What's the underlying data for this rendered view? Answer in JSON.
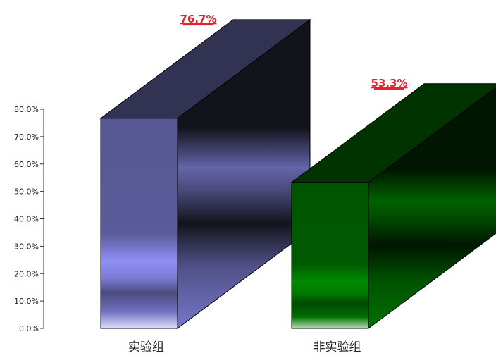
{
  "chart_data": {
    "type": "bar",
    "style": "3d",
    "categories": [
      "实验组",
      "非实验组"
    ],
    "values": [
      76.7,
      53.3
    ],
    "data_labels": [
      "76.7%",
      "53.3%"
    ],
    "ylim": [
      0,
      80
    ],
    "yticks": [
      0,
      10,
      20,
      30,
      40,
      50,
      60,
      70,
      80
    ],
    "ytick_labels": [
      "0.0%",
      "10.0%",
      "20.0%",
      "30.0%",
      "40.0%",
      "50.0%",
      "60.0%",
      "70.0%",
      "80.0%"
    ],
    "title": "",
    "xlabel": "",
    "ylabel": "",
    "grid": false,
    "legend": "none",
    "colors": {
      "bar_front": [
        "#8f8ff5",
        "#008a00"
      ],
      "bar_dark": [
        "#13131c",
        "#001600"
      ],
      "data_label": "#e8202a",
      "axis": "#333333"
    }
  }
}
